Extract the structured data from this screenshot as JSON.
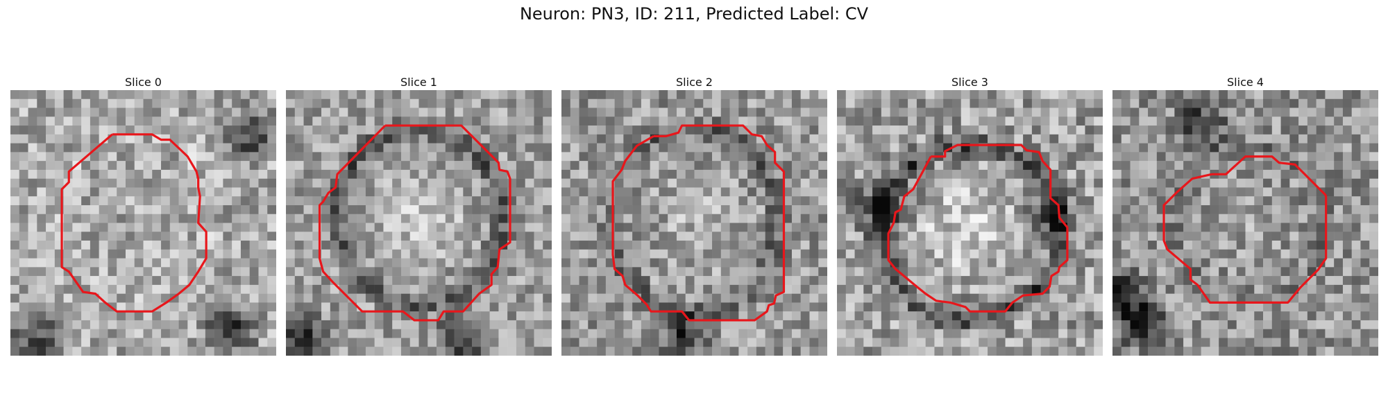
{
  "figure": {
    "title": "Neuron: PN3, ID: 211, Predicted Label: CV"
  },
  "panels": [
    {
      "title": "Slice 0",
      "contour_color": "#e8161b"
    },
    {
      "title": "Slice 1",
      "contour_color": "#e8161b"
    },
    {
      "title": "Slice 2",
      "contour_color": "#e8161b"
    },
    {
      "title": "Slice 3",
      "contour_color": "#e8161b"
    },
    {
      "title": "Slice 4",
      "contour_color": "#e8161b"
    }
  ]
}
